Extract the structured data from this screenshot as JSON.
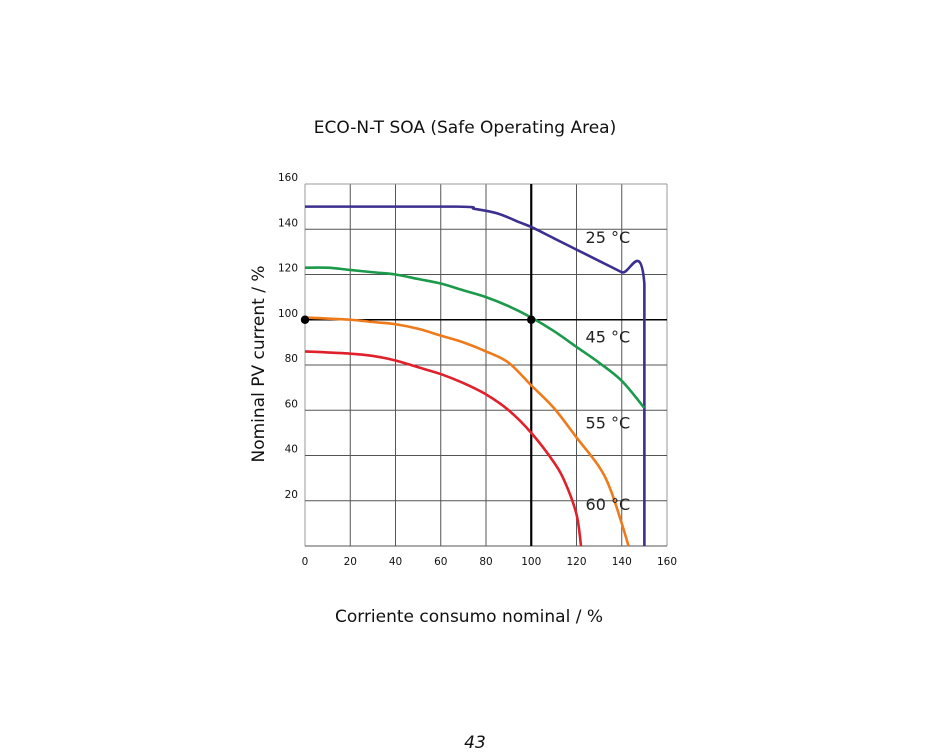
{
  "page_number": "43",
  "chart_data": {
    "type": "line",
    "title": "ECO-N-T SOA (Safe Operating Area)",
    "xlabel": "Corriente consumo nominal / %",
    "ylabel": "Nominal PV current / %",
    "xlim": [
      0,
      160
    ],
    "ylim": [
      0,
      160
    ],
    "x_ticks": [
      "0",
      "20",
      "40",
      "60",
      "80",
      "100",
      "120",
      "140",
      "160"
    ],
    "y_ticks": [
      "20",
      "40",
      "60",
      "80",
      "100",
      "120",
      "140",
      "160"
    ],
    "grid": true,
    "reference_lines": {
      "x": 100,
      "y": 100
    },
    "markers": [
      {
        "x": 0,
        "y": 100
      },
      {
        "x": 100,
        "y": 100
      }
    ],
    "series": [
      {
        "name": "25 °C",
        "color": "#3b2f8f",
        "x": [
          0,
          67,
          75,
          85,
          95,
          100,
          110,
          120,
          130,
          140,
          150,
          150
        ],
        "y": [
          150,
          150,
          149,
          147,
          143,
          141,
          136,
          131,
          126,
          121,
          116,
          0
        ]
      },
      {
        "name": "45 °C",
        "color": "#1a9a4a",
        "x": [
          0,
          10,
          20,
          30,
          40,
          50,
          60,
          70,
          80,
          90,
          100,
          110,
          120,
          130,
          140,
          150
        ],
        "y": [
          123,
          123,
          122,
          121,
          120,
          118,
          116,
          113,
          110,
          106,
          101,
          95,
          88,
          81,
          73,
          61
        ]
      },
      {
        "name": "55 °C",
        "color": "#ef7a1a",
        "x": [
          0,
          20,
          30,
          40,
          50,
          60,
          70,
          80,
          90,
          100,
          110,
          120,
          130,
          135,
          140,
          143
        ],
        "y": [
          101,
          100,
          99,
          98,
          96,
          93,
          90,
          86,
          81,
          71,
          61,
          48,
          35,
          25,
          10,
          0
        ]
      },
      {
        "name": "60 °C",
        "color": "#e0202a",
        "x": [
          0,
          20,
          30,
          40,
          50,
          60,
          70,
          80,
          90,
          100,
          110,
          115,
          120,
          122
        ],
        "y": [
          86,
          85,
          84,
          82,
          79,
          76,
          72,
          67,
          60,
          50,
          37,
          28,
          14,
          0
        ]
      }
    ],
    "annotations": [
      {
        "text": "25 °C",
        "x": 124,
        "y": 134
      },
      {
        "text": "45 °C",
        "x": 124,
        "y": 90
      },
      {
        "text": "55 °C",
        "x": 124,
        "y": 52
      },
      {
        "text": "60 °C",
        "x": 124,
        "y": 16
      }
    ]
  }
}
